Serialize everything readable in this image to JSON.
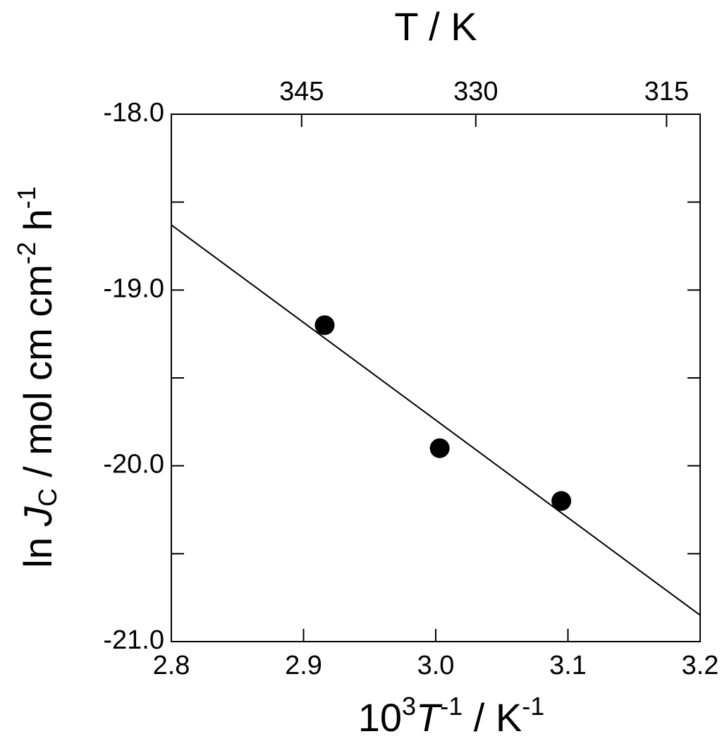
{
  "chart_data": {
    "type": "scatter",
    "top_axis": {
      "label": "T / K",
      "ticks": [
        345,
        330,
        315
      ]
    },
    "xlabel": [
      "10",
      "3",
      "T",
      "-1",
      " / K",
      "-1"
    ],
    "ylabel": [
      "ln ",
      "J",
      "C",
      " / mol cm cm",
      "-2",
      " h",
      "-1"
    ],
    "xlim": [
      2.8,
      3.2
    ],
    "ylim": [
      -21,
      -18
    ],
    "xticks": [
      2.8,
      2.9,
      {
        "value": 3,
        "label": "3.0"
      },
      3.1,
      3.2
    ],
    "yticks": [
      {
        "value": -18,
        "label": "-18.0"
      },
      {
        "value": -19,
        "label": "-19.0"
      },
      {
        "value": -20,
        "label": "-20.0"
      },
      {
        "value": -21,
        "label": "-21.0"
      }
    ],
    "yminor_ticks": [
      -18.5,
      -19.5,
      -20.5
    ],
    "series": [
      {
        "color": "#000000",
        "x": [
          2.916,
          3.003,
          3.095
        ],
        "values": [
          -19.2,
          -19.9,
          -20.2
        ]
      }
    ],
    "fit": {
      "color": "#000000",
      "x": [
        2.8,
        3.2
      ],
      "values": [
        -18.63,
        -20.85
      ]
    }
  }
}
